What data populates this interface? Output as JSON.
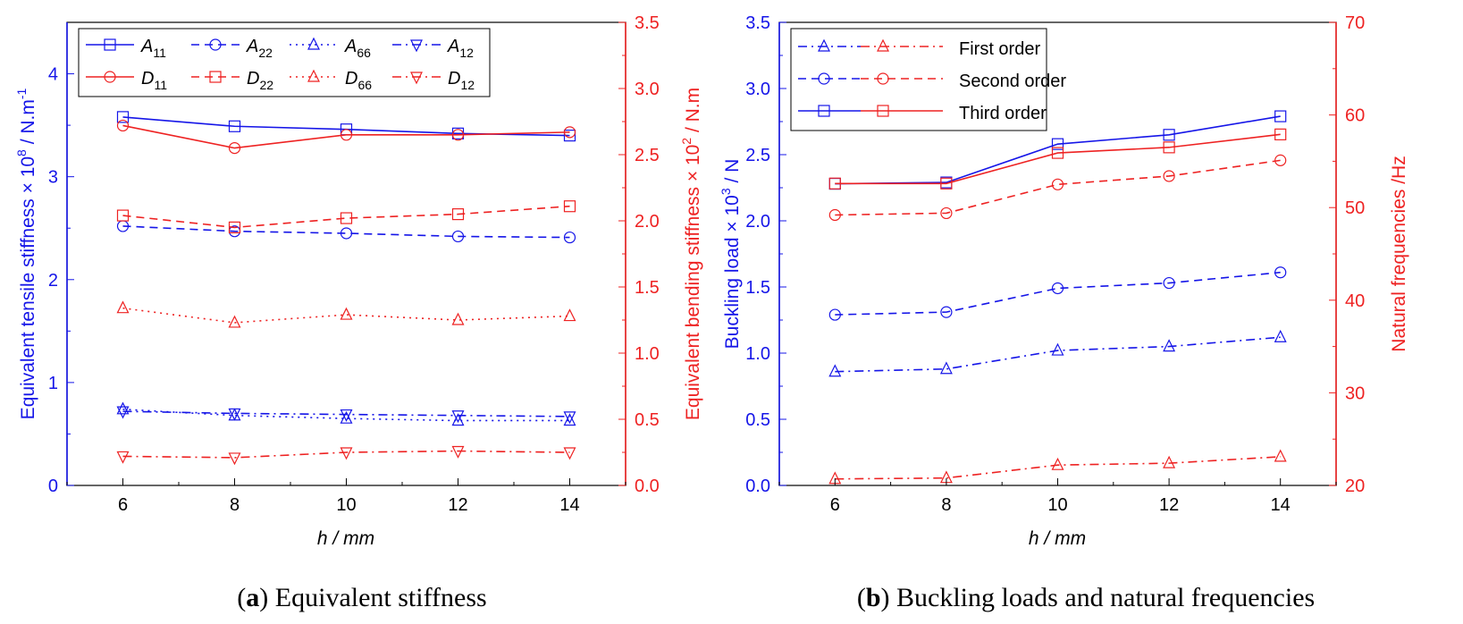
{
  "colors": {
    "blue": "#1515e8",
    "red": "#ee2222",
    "black": "#000000"
  },
  "chart_data": [
    {
      "type": "line",
      "panel": "a",
      "caption_label": "a",
      "caption_text": "Equivalent stiffness",
      "xlabel": "h / mm",
      "x": [
        6,
        8,
        10,
        12,
        14
      ],
      "xticks": [
        6,
        8,
        10,
        12,
        14
      ],
      "xlim": [
        5,
        15
      ],
      "ylabel_left": "Equivalent tensile stiffness × 10",
      "ylabel_left_sup": "8",
      "ylabel_left_unit": " / N.m",
      "ylabel_left_unit_sup": "-1",
      "ylim_left": [
        0,
        4.5
      ],
      "yticks_left": [
        "0",
        "1",
        "2",
        "3",
        "4"
      ],
      "ylabel_right": "Equivalent bending stiffness × 10",
      "ylabel_right_sup": "2",
      "ylabel_right_unit": " / N.m",
      "ylim_right": [
        0,
        3.5
      ],
      "yticks_right": [
        "0.0",
        "0.5",
        "1.0",
        "1.5",
        "2.0",
        "2.5",
        "3.0",
        "3.5"
      ],
      "series": [
        {
          "name": "A",
          "sub": "11",
          "axis": "left",
          "color": "blue",
          "dash": "solid",
          "marker": "square",
          "values": [
            3.58,
            3.49,
            3.46,
            3.42,
            3.4
          ]
        },
        {
          "name": "A",
          "sub": "22",
          "axis": "left",
          "color": "blue",
          "dash": "dash",
          "marker": "circle",
          "values": [
            2.52,
            2.47,
            2.45,
            2.42,
            2.41
          ]
        },
        {
          "name": "A",
          "sub": "66",
          "axis": "left",
          "color": "blue",
          "dash": "dot",
          "marker": "triangle-up",
          "values": [
            0.74,
            0.68,
            0.65,
            0.63,
            0.63
          ]
        },
        {
          "name": "A",
          "sub": "12",
          "axis": "left",
          "color": "blue",
          "dash": "dashdot",
          "marker": "triangle-down",
          "values": [
            0.72,
            0.7,
            0.69,
            0.68,
            0.67
          ]
        },
        {
          "name": "D",
          "sub": "11",
          "axis": "right",
          "color": "red",
          "dash": "solid",
          "marker": "circle",
          "values": [
            2.72,
            2.55,
            2.65,
            2.65,
            2.67
          ]
        },
        {
          "name": "D",
          "sub": "22",
          "axis": "right",
          "color": "red",
          "dash": "dash",
          "marker": "square",
          "values": [
            2.04,
            1.95,
            2.02,
            2.05,
            2.11
          ]
        },
        {
          "name": "D",
          "sub": "66",
          "axis": "right",
          "color": "red",
          "dash": "dot",
          "marker": "triangle-up",
          "values": [
            1.34,
            1.23,
            1.29,
            1.25,
            1.28
          ]
        },
        {
          "name": "D",
          "sub": "12",
          "axis": "right",
          "color": "red",
          "dash": "dashdot",
          "marker": "triangle-down",
          "values": [
            0.22,
            0.21,
            0.25,
            0.26,
            0.25
          ]
        }
      ]
    },
    {
      "type": "line",
      "panel": "b",
      "caption_label": "b",
      "caption_text": "Buckling loads and natural frequencies",
      "xlabel": "h / mm",
      "x": [
        6,
        8,
        10,
        12,
        14
      ],
      "xticks": [
        6,
        8,
        10,
        12,
        14
      ],
      "xlim": [
        5,
        15
      ],
      "ylabel_left": "Buckling load × 10",
      "ylabel_left_sup": "3",
      "ylabel_left_unit": " / N",
      "ylim_left": [
        0,
        3.5
      ],
      "yticks_left": [
        "0.0",
        "0.5",
        "1.0",
        "1.5",
        "2.0",
        "2.5",
        "3.0",
        "3.5"
      ],
      "ylabel_right": "Natural frequencies /Hz",
      "ylim_right": [
        20,
        70
      ],
      "yticks_right": [
        "20",
        "30",
        "40",
        "50",
        "60",
        "70"
      ],
      "legend": [
        "First order",
        "Second order",
        "Third order"
      ],
      "series": [
        {
          "name": "First order",
          "axis": "left",
          "color": "blue",
          "dash": "dashdot",
          "marker": "triangle-up",
          "values": [
            0.86,
            0.88,
            1.02,
            1.05,
            1.12
          ]
        },
        {
          "name": "Second order",
          "axis": "left",
          "color": "blue",
          "dash": "dash",
          "marker": "circle",
          "values": [
            1.29,
            1.31,
            1.49,
            1.53,
            1.61
          ]
        },
        {
          "name": "Third order",
          "axis": "left",
          "color": "blue",
          "dash": "solid",
          "marker": "square",
          "values": [
            2.28,
            2.29,
            2.58,
            2.65,
            2.79
          ]
        },
        {
          "name": "First order",
          "axis": "right",
          "color": "red",
          "dash": "dashdot",
          "marker": "triangle-up",
          "values": [
            20.7,
            20.8,
            22.2,
            22.4,
            23.1
          ]
        },
        {
          "name": "Second order",
          "axis": "right",
          "color": "red",
          "dash": "dash",
          "marker": "circle",
          "values": [
            49.2,
            49.4,
            52.5,
            53.4,
            55.1
          ]
        },
        {
          "name": "Third order",
          "axis": "right",
          "color": "red",
          "dash": "solid",
          "marker": "square",
          "values": [
            52.6,
            52.6,
            55.9,
            56.5,
            57.9
          ]
        }
      ]
    }
  ]
}
